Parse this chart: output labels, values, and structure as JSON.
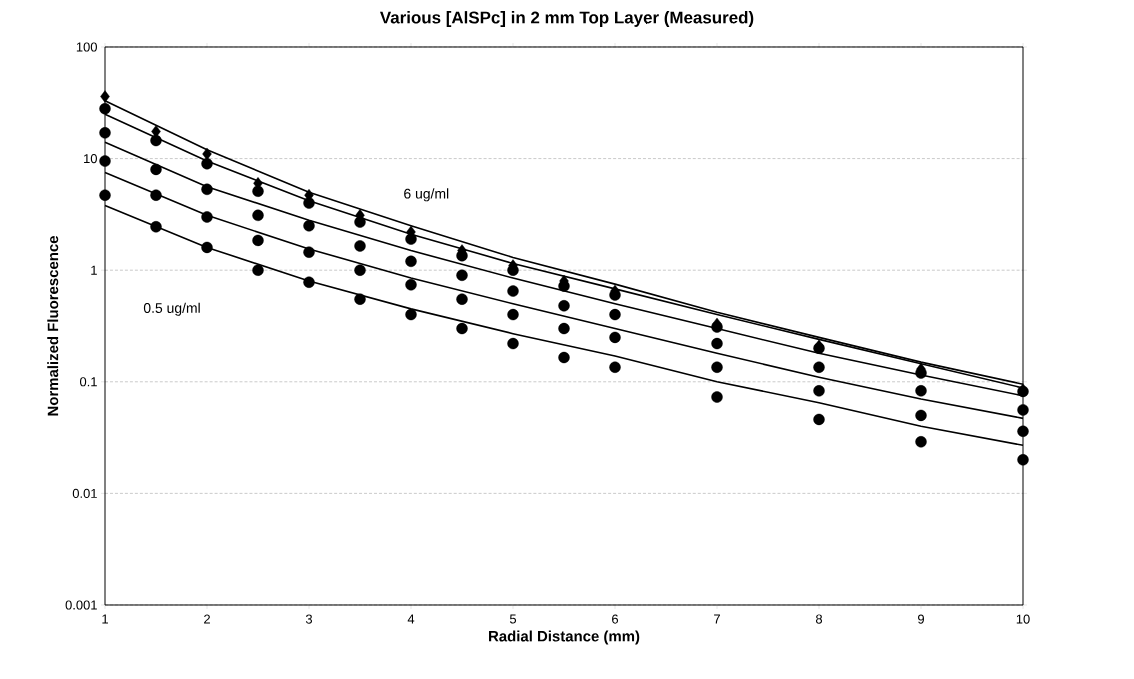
{
  "chart_data": {
    "type": "scatter",
    "title": "Various [AlSPc] in 2 mm Top Layer (Measured)",
    "xlabel": "Radial Distance (mm)",
    "ylabel": "Normalized Fluorescence",
    "log": "y",
    "grid": "y",
    "xlim": [
      1,
      10
    ],
    "ylim": [
      0.001,
      100
    ],
    "xticks": [
      1,
      2,
      3,
      4,
      5,
      6,
      7,
      8,
      9,
      10
    ],
    "yticks": [
      0.001,
      0.01,
      0.1,
      1,
      10,
      100
    ],
    "annotations": [
      "6 ug/ml",
      "0.5 ug/ml"
    ],
    "series": [
      {
        "marker": "diamond",
        "color": "#000000",
        "x": [
          1,
          1.5,
          2,
          2.5,
          3,
          3.5,
          4,
          4.5,
          5,
          5.5,
          6,
          7,
          8,
          9,
          10
        ],
        "values": [
          36,
          17.5,
          11,
          6,
          4.7,
          3.1,
          2.2,
          1.5,
          1.1,
          0.8,
          0.65,
          0.33,
          0.21,
          0.13,
          0.085
        ]
      },
      {
        "type": "scatter",
        "marker": "circle",
        "color": "#000000",
        "x": [
          1,
          1.5,
          2,
          2.5,
          3,
          3.5,
          4,
          4.5,
          5,
          5.5,
          6,
          7,
          8,
          9,
          10
        ],
        "values": [
          28,
          14.5,
          9,
          5.1,
          4.0,
          2.7,
          1.9,
          1.35,
          1.0,
          0.72,
          0.6,
          0.31,
          0.2,
          0.12,
          0.082
        ]
      },
      {
        "type": "scatter",
        "marker": "circle",
        "color": "#000000",
        "x": [
          1,
          1.5,
          2,
          2.5,
          3,
          3.5,
          4,
          4.5,
          5,
          5.5,
          6,
          7,
          8,
          9,
          10
        ],
        "values": [
          17,
          8,
          5.3,
          3.1,
          2.5,
          1.65,
          1.2,
          0.9,
          0.65,
          0.48,
          0.4,
          0.22,
          0.135,
          0.083,
          0.056
        ]
      },
      {
        "type": "scatter",
        "marker": "circle",
        "color": "#000000",
        "x": [
          1,
          1.5,
          2,
          2.5,
          3,
          3.5,
          4,
          4.5,
          5,
          5.5,
          6,
          7,
          8,
          9,
          10
        ],
        "values": [
          9.5,
          4.7,
          3.0,
          1.85,
          1.45,
          1.0,
          0.74,
          0.55,
          0.4,
          0.3,
          0.25,
          0.135,
          0.083,
          0.05,
          0.036
        ]
      },
      {
        "type": "scatter",
        "marker": "circle",
        "color": "#000000",
        "x": [
          1,
          1.5,
          2,
          2.5,
          3,
          3.5,
          4,
          4.5,
          5,
          5.5,
          6,
          7,
          8,
          9,
          10
        ],
        "values": [
          4.7,
          2.45,
          1.6,
          1.0,
          0.78,
          0.55,
          0.4,
          0.3,
          0.22,
          0.165,
          0.135,
          0.073,
          0.046,
          0.029,
          0.02
        ]
      },
      {
        "type": "line",
        "color": "#000000",
        "x": [
          1,
          2,
          3,
          4,
          5,
          6,
          7,
          8,
          9,
          10
        ],
        "values": [
          33,
          12,
          5,
          2.5,
          1.3,
          0.75,
          0.42,
          0.25,
          0.15,
          0.095
        ]
      },
      {
        "type": "line",
        "color": "#000000",
        "x": [
          1,
          2,
          3,
          4,
          5,
          6,
          7,
          8,
          9,
          10
        ],
        "values": [
          25,
          9.5,
          4.2,
          2.1,
          1.15,
          0.68,
          0.4,
          0.24,
          0.145,
          0.088
        ]
      },
      {
        "type": "line",
        "color": "#000000",
        "x": [
          1,
          2,
          3,
          4,
          5,
          6,
          7,
          8,
          9,
          10
        ],
        "values": [
          14,
          5.6,
          2.8,
          1.5,
          0.85,
          0.5,
          0.3,
          0.18,
          0.115,
          0.075
        ]
      },
      {
        "type": "line",
        "color": "#000000",
        "x": [
          1,
          2,
          3,
          4,
          5,
          6,
          7,
          8,
          9,
          10
        ],
        "values": [
          7.5,
          3.1,
          1.55,
          0.85,
          0.5,
          0.3,
          0.18,
          0.11,
          0.07,
          0.047
        ]
      },
      {
        "type": "line",
        "color": "#000000",
        "x": [
          1,
          2,
          3,
          4,
          5,
          6,
          7,
          8,
          9,
          10
        ],
        "values": [
          3.8,
          1.6,
          0.8,
          0.45,
          0.27,
          0.17,
          0.1,
          0.065,
          0.04,
          0.027
        ]
      }
    ]
  }
}
